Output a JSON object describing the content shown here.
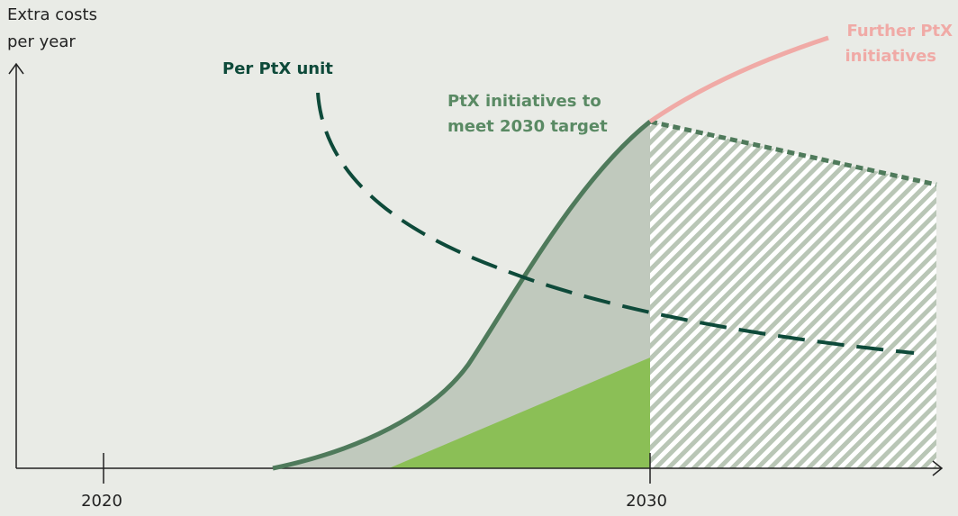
{
  "y_axis_label": [
    "Extra costs",
    "per year"
  ],
  "x_ticks": [
    "2020",
    "2030"
  ],
  "annotations": {
    "per_unit": "Per PtX unit",
    "target": [
      "PtX initiatives to",
      "meet 2030 target"
    ],
    "further": [
      "Further PtX",
      "initiatives"
    ]
  }
}
